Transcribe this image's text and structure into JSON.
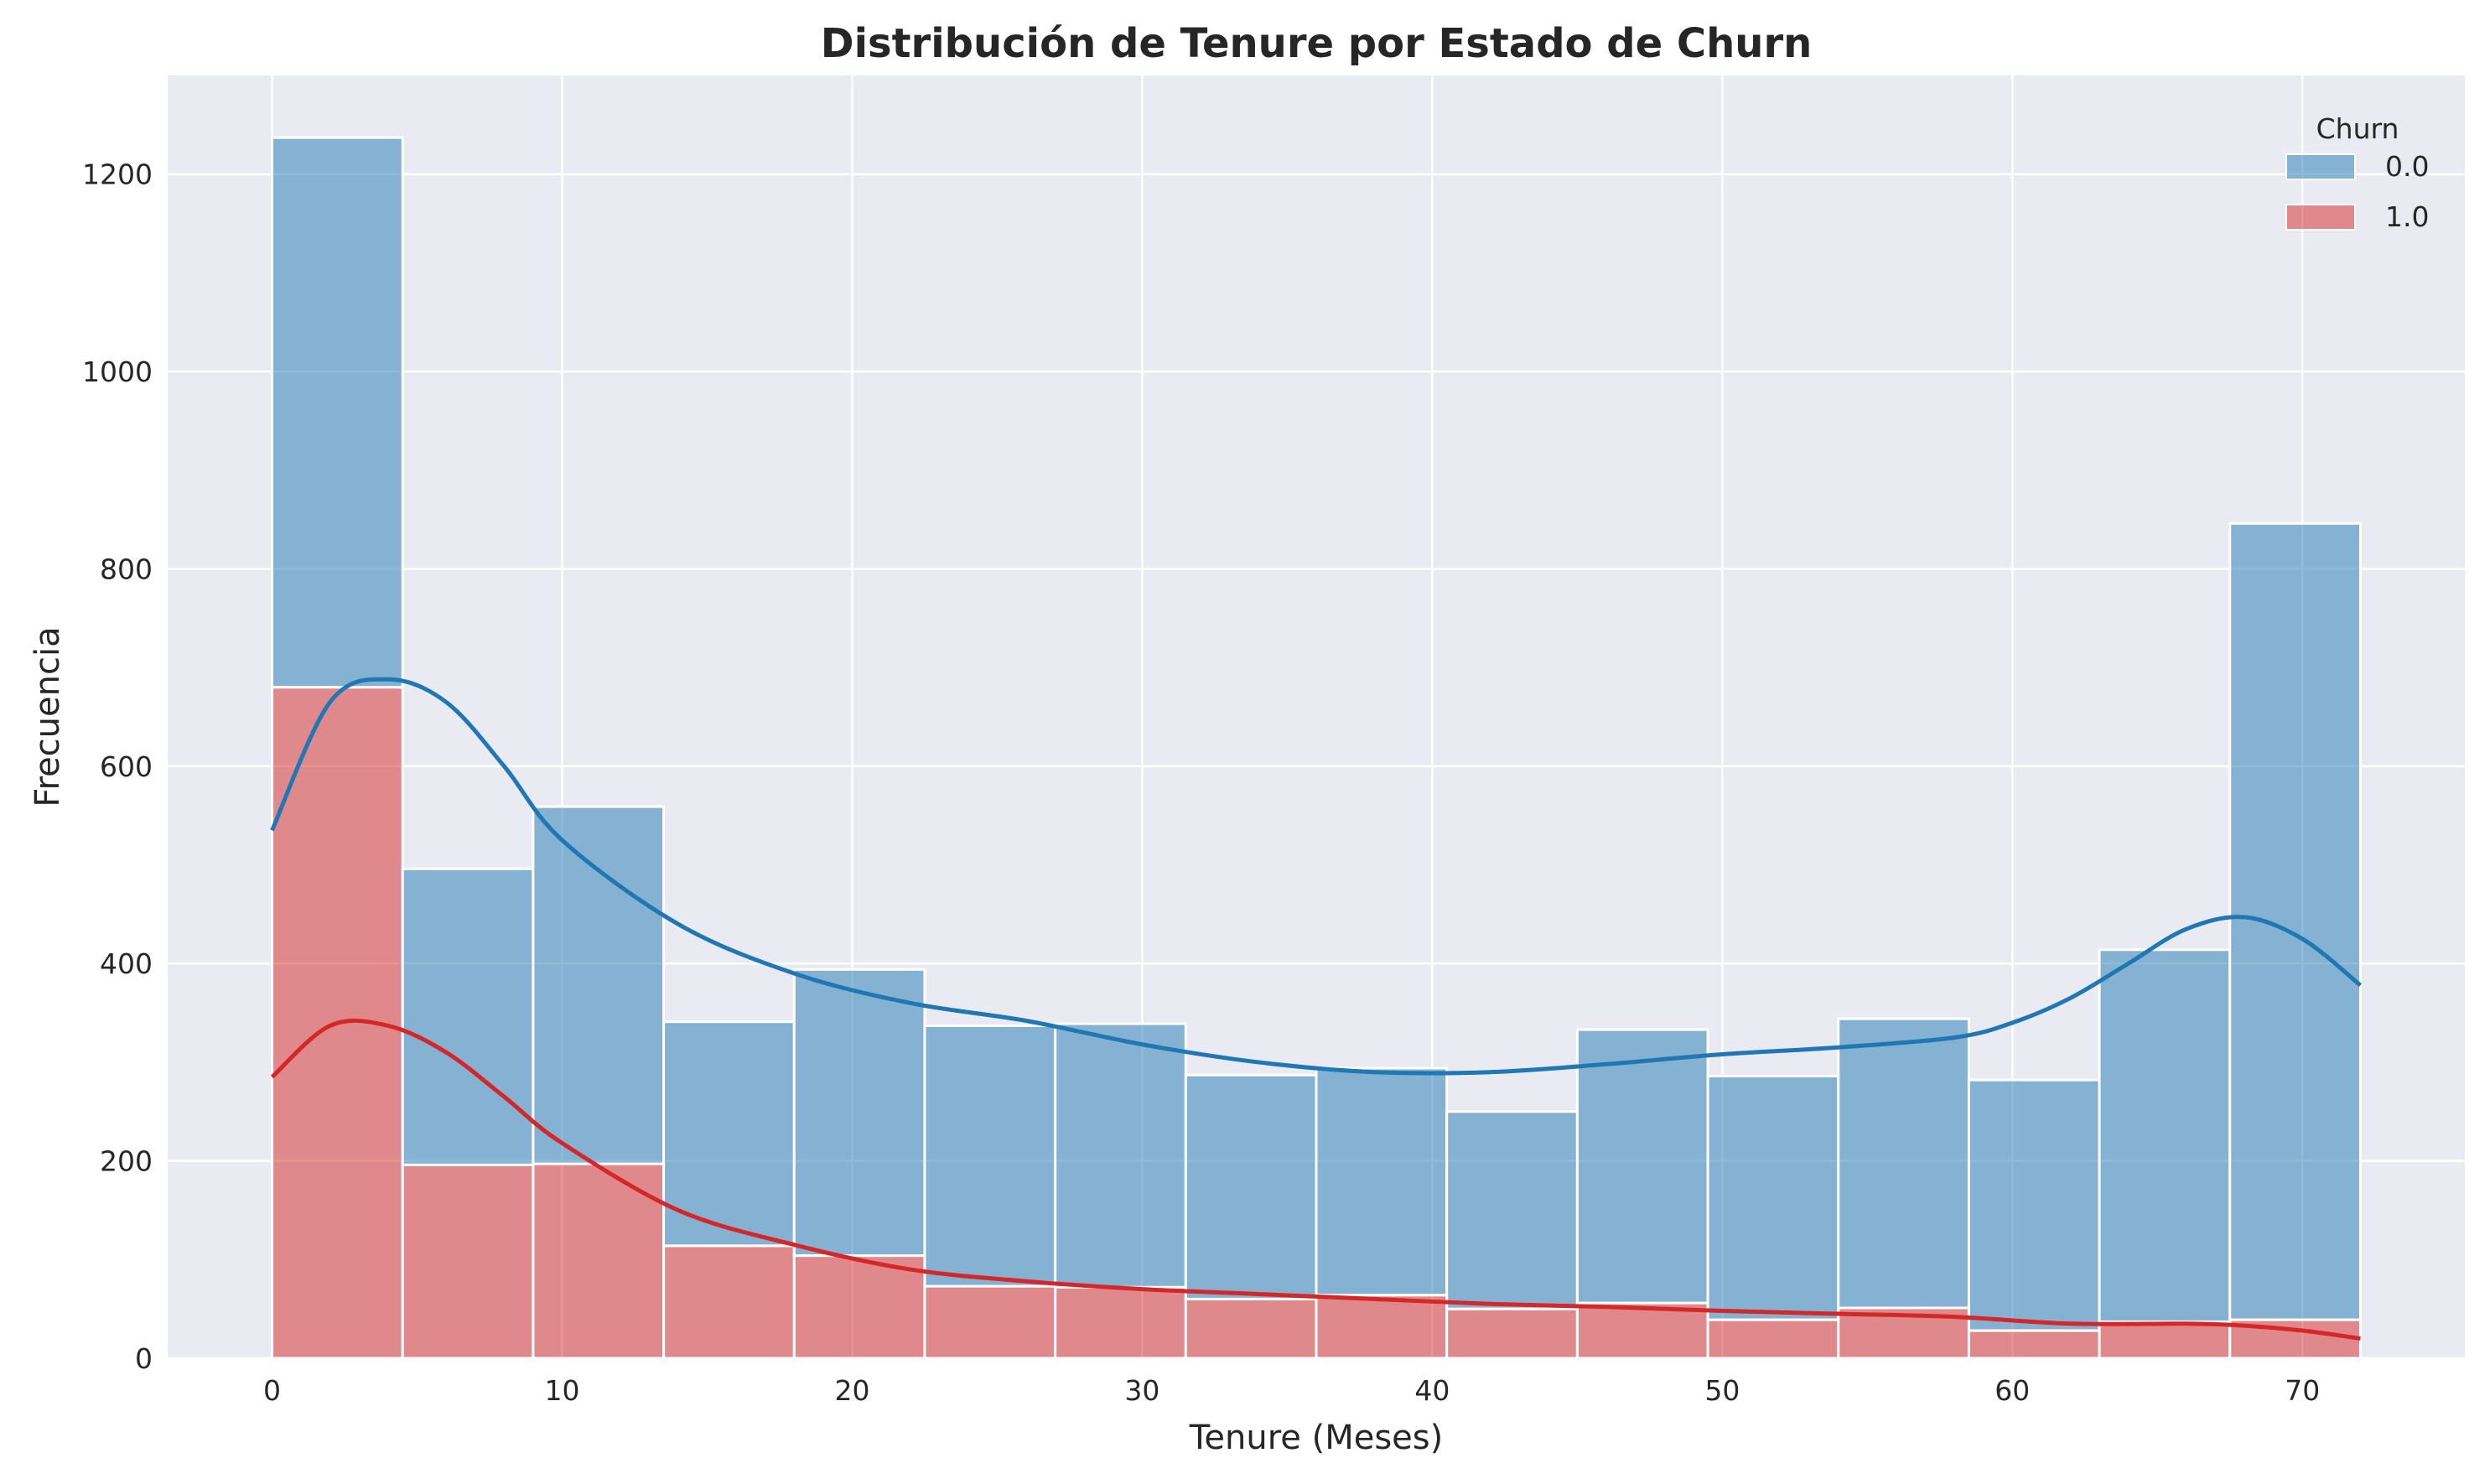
{
  "chart_data": {
    "type": "bar",
    "title": "Distribución de Tenure por Estado de Churn",
    "xlabel": "Tenure (Meses)",
    "ylabel": "Frecuencia",
    "xlim": [
      -3.6,
      75.6
    ],
    "ylim": [
      0,
      1300
    ],
    "x_ticks": [
      0,
      10,
      20,
      30,
      40,
      50,
      60,
      70
    ],
    "x_tick_labels": [
      "0",
      "10",
      "20",
      "30",
      "40",
      "50",
      "60",
      "70"
    ],
    "y_ticks": [
      0,
      200,
      400,
      600,
      800,
      1000,
      1200
    ],
    "y_tick_labels": [
      "0",
      "200",
      "400",
      "600",
      "800",
      "1000",
      "1200"
    ],
    "grid": true,
    "stacked": true,
    "bin_edges": [
      0,
      4.5,
      9,
      13.5,
      18,
      22.5,
      27,
      31.5,
      36,
      40.5,
      45,
      49.5,
      54,
      58.5,
      63,
      67.5,
      72
    ],
    "legend": {
      "title": "Churn",
      "position": "top-right"
    },
    "series": [
      {
        "name": "0.0",
        "color": "#1f77b4",
        "values": [
          557,
          300,
          362,
          227,
          290,
          264,
          267,
          227,
          230,
          200,
          277,
          247,
          293,
          254,
          377,
          807
        ],
        "kde_x": [
          0,
          2,
          4,
          6,
          8,
          10,
          14,
          18,
          22,
          26,
          30,
          34,
          38,
          42,
          46,
          50,
          54,
          58,
          60,
          62,
          64,
          66,
          68,
          70,
          72
        ],
        "kde_y": [
          535,
          665,
          688,
          665,
          600,
          525,
          440,
          390,
          360,
          342,
          318,
          300,
          290,
          290,
          298,
          308,
          315,
          325,
          340,
          365,
          400,
          435,
          447,
          425,
          378
        ]
      },
      {
        "name": "1.0",
        "color": "#d62728",
        "values": [
          680,
          196,
          197,
          114,
          104,
          73,
          72,
          60,
          64,
          50,
          56,
          39,
          51,
          28,
          37,
          39
        ],
        "kde_x": [
          0,
          2,
          4,
          6,
          8,
          10,
          14,
          18,
          22,
          26,
          30,
          34,
          38,
          42,
          46,
          50,
          54,
          58,
          62,
          66,
          68,
          70,
          72
        ],
        "kde_y": [
          285,
          337,
          337,
          310,
          265,
          218,
          150,
          115,
          90,
          78,
          70,
          65,
          60,
          55,
          52,
          48,
          45,
          42,
          35,
          35,
          33,
          28,
          20
        ]
      }
    ]
  }
}
